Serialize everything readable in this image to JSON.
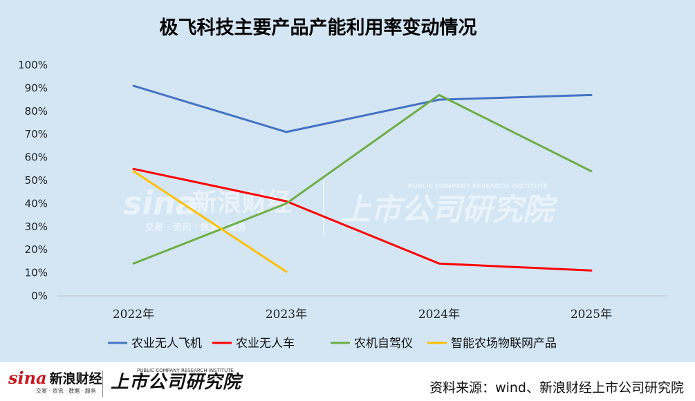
{
  "chart_data": {
    "type": "line",
    "title": "极飞科技主要产品产能利用率变动情况",
    "categories": [
      "2022年",
      "2023年",
      "2024年",
      "2025年"
    ],
    "y_ticks": [
      "0%",
      "10%",
      "20%",
      "30%",
      "40%",
      "50%",
      "60%",
      "70%",
      "80%",
      "90%",
      "100%"
    ],
    "ylim": [
      0,
      100
    ],
    "grid": false,
    "legend_position": "bottom",
    "series": [
      {
        "name": "农业无人飞机",
        "color": "#4472c4",
        "values": [
          91,
          71,
          85,
          87
        ]
      },
      {
        "name": "农业无人车",
        "color": "#ff0000",
        "values": [
          55,
          41,
          14,
          11
        ]
      },
      {
        "name": "农机自驾仪",
        "color": "#70ad47",
        "values": [
          14,
          40,
          87,
          54
        ]
      },
      {
        "name": "智能农场物联网产品",
        "color": "#ffc000",
        "values": [
          54,
          10.5,
          null,
          null
        ]
      }
    ]
  },
  "watermark": {
    "sina": "sina",
    "sina_cn": "新浪财经",
    "sina_sub": "交易 · 资讯 · 数据 · 服务",
    "institute_en": "PUBLIC COMPANY RESEARCH INSTITUTE",
    "institute_cn": "上市公司研究院"
  },
  "footer": {
    "source": "资料来源：wind、新浪财经上市公司研究院"
  }
}
